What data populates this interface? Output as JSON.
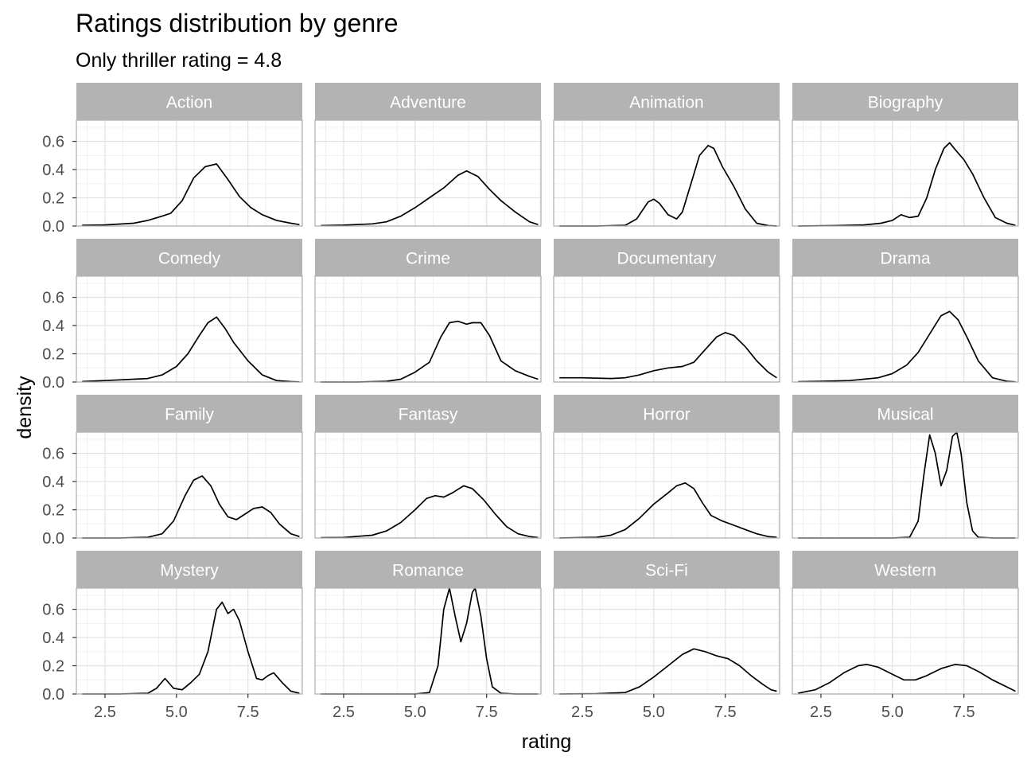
{
  "chart_data": {
    "type": "line",
    "title": "Ratings distribution by genre",
    "subtitle": "Only thriller rating = 4.8",
    "xlabel": "rating",
    "ylabel": "density",
    "xlim": [
      1.5,
      9.4
    ],
    "ylim": [
      0,
      0.75
    ],
    "x_ticks": [
      2.5,
      5.0,
      7.5
    ],
    "x_tick_labels": [
      "2.5",
      "5.0",
      "7.5"
    ],
    "y_ticks": [
      0.0,
      0.2,
      0.4,
      0.6
    ],
    "y_tick_labels": [
      "0.0",
      "0.2",
      "0.4",
      "0.6"
    ],
    "grid": true,
    "layout": "4x4 facet grid",
    "line_color": "#000000",
    "strip_color": "#b3b3b3",
    "panels": [
      {
        "name": "Action",
        "x": [
          1.7,
          2.5,
          3.5,
          4.0,
          4.5,
          4.8,
          5.2,
          5.6,
          6.0,
          6.4,
          6.8,
          7.2,
          7.6,
          8.0,
          8.5,
          9.0,
          9.3
        ],
        "y": [
          0.005,
          0.008,
          0.02,
          0.04,
          0.07,
          0.09,
          0.18,
          0.34,
          0.42,
          0.44,
          0.33,
          0.21,
          0.13,
          0.08,
          0.04,
          0.02,
          0.01
        ]
      },
      {
        "name": "Adventure",
        "x": [
          1.7,
          2.5,
          3.5,
          4.0,
          4.5,
          5.0,
          5.5,
          6.0,
          6.5,
          6.8,
          7.2,
          7.6,
          8.0,
          8.5,
          9.0,
          9.3
        ],
        "y": [
          0.003,
          0.006,
          0.015,
          0.03,
          0.07,
          0.13,
          0.2,
          0.27,
          0.36,
          0.39,
          0.35,
          0.26,
          0.18,
          0.1,
          0.03,
          0.01
        ]
      },
      {
        "name": "Animation",
        "x": [
          1.7,
          3.0,
          4.0,
          4.4,
          4.8,
          5.0,
          5.2,
          5.5,
          5.8,
          6.0,
          6.3,
          6.6,
          6.9,
          7.1,
          7.4,
          7.8,
          8.2,
          8.6,
          9.0,
          9.3
        ],
        "y": [
          0,
          0,
          0.005,
          0.05,
          0.17,
          0.19,
          0.16,
          0.08,
          0.05,
          0.1,
          0.3,
          0.5,
          0.57,
          0.55,
          0.42,
          0.28,
          0.12,
          0.02,
          0.003,
          0
        ]
      },
      {
        "name": "Biography",
        "x": [
          1.7,
          3.0,
          4.0,
          4.6,
          5.0,
          5.3,
          5.6,
          5.9,
          6.2,
          6.5,
          6.8,
          7.0,
          7.2,
          7.5,
          7.8,
          8.2,
          8.6,
          9.0,
          9.3
        ],
        "y": [
          0,
          0.003,
          0.008,
          0.02,
          0.04,
          0.08,
          0.06,
          0.07,
          0.2,
          0.4,
          0.55,
          0.59,
          0.54,
          0.47,
          0.37,
          0.2,
          0.06,
          0.02,
          0.005
        ]
      },
      {
        "name": "Comedy",
        "x": [
          1.7,
          2.5,
          3.5,
          4.0,
          4.5,
          5.0,
          5.4,
          5.8,
          6.1,
          6.4,
          6.7,
          7.0,
          7.5,
          8.0,
          8.5,
          9.0,
          9.3
        ],
        "y": [
          0.004,
          0.01,
          0.02,
          0.025,
          0.05,
          0.11,
          0.2,
          0.33,
          0.42,
          0.46,
          0.38,
          0.28,
          0.15,
          0.05,
          0.01,
          0.003,
          0.001
        ]
      },
      {
        "name": "Crime",
        "x": [
          1.7,
          3.0,
          4.0,
          4.5,
          5.0,
          5.5,
          5.9,
          6.2,
          6.5,
          6.8,
          7.0,
          7.3,
          7.6,
          8.0,
          8.5,
          9.0,
          9.3
        ],
        "y": [
          0,
          0,
          0.005,
          0.02,
          0.07,
          0.14,
          0.32,
          0.42,
          0.43,
          0.41,
          0.42,
          0.42,
          0.33,
          0.15,
          0.08,
          0.04,
          0.02
        ]
      },
      {
        "name": "Documentary",
        "x": [
          1.7,
          2.5,
          3.5,
          4.0,
          4.5,
          5.0,
          5.5,
          6.0,
          6.4,
          6.8,
          7.2,
          7.5,
          7.8,
          8.2,
          8.6,
          9.0,
          9.3
        ],
        "y": [
          0.03,
          0.03,
          0.025,
          0.03,
          0.05,
          0.08,
          0.1,
          0.11,
          0.14,
          0.23,
          0.32,
          0.35,
          0.33,
          0.25,
          0.15,
          0.07,
          0.03
        ]
      },
      {
        "name": "Drama",
        "x": [
          1.7,
          2.5,
          3.5,
          4.0,
          4.5,
          5.0,
          5.5,
          5.9,
          6.3,
          6.7,
          7.0,
          7.3,
          7.6,
          8.0,
          8.5,
          9.0,
          9.3
        ],
        "y": [
          0.002,
          0.005,
          0.01,
          0.02,
          0.03,
          0.06,
          0.12,
          0.21,
          0.34,
          0.47,
          0.5,
          0.44,
          0.32,
          0.15,
          0.03,
          0.005,
          0.001
        ]
      },
      {
        "name": "Family",
        "x": [
          1.7,
          3.0,
          4.0,
          4.5,
          4.9,
          5.3,
          5.6,
          5.9,
          6.2,
          6.5,
          6.8,
          7.1,
          7.4,
          7.7,
          8.0,
          8.3,
          8.6,
          9.0,
          9.3
        ],
        "y": [
          0,
          0,
          0.005,
          0.03,
          0.12,
          0.3,
          0.41,
          0.44,
          0.37,
          0.24,
          0.15,
          0.13,
          0.17,
          0.21,
          0.22,
          0.18,
          0.1,
          0.03,
          0.01
        ]
      },
      {
        "name": "Fantasy",
        "x": [
          1.7,
          2.5,
          3.5,
          4.0,
          4.5,
          5.0,
          5.4,
          5.7,
          6.0,
          6.3,
          6.7,
          7.0,
          7.4,
          7.8,
          8.2,
          8.6,
          9.0,
          9.3
        ],
        "y": [
          0.002,
          0.004,
          0.02,
          0.05,
          0.11,
          0.2,
          0.28,
          0.3,
          0.29,
          0.32,
          0.37,
          0.35,
          0.27,
          0.17,
          0.08,
          0.03,
          0.01,
          0.003
        ]
      },
      {
        "name": "Horror",
        "x": [
          1.7,
          3.0,
          3.5,
          4.0,
          4.5,
          5.0,
          5.5,
          5.8,
          6.1,
          6.4,
          6.7,
          7.0,
          7.4,
          7.8,
          8.2,
          8.6,
          9.0,
          9.3
        ],
        "y": [
          0,
          0.005,
          0.02,
          0.06,
          0.14,
          0.24,
          0.32,
          0.37,
          0.39,
          0.35,
          0.25,
          0.16,
          0.12,
          0.09,
          0.06,
          0.03,
          0.01,
          0.005
        ]
      },
      {
        "name": "Musical",
        "x": [
          1.7,
          4.0,
          5.0,
          5.6,
          5.9,
          6.1,
          6.3,
          6.5,
          6.7,
          6.9,
          7.1,
          7.25,
          7.4,
          7.6,
          7.8,
          8.0,
          8.5,
          9.3
        ],
        "y": [
          0,
          0,
          0,
          0.005,
          0.12,
          0.45,
          0.73,
          0.6,
          0.37,
          0.48,
          0.72,
          0.75,
          0.6,
          0.25,
          0.05,
          0.005,
          0,
          0
        ]
      },
      {
        "name": "Mystery",
        "x": [
          1.7,
          3.0,
          4.0,
          4.3,
          4.6,
          4.9,
          5.2,
          5.5,
          5.8,
          6.1,
          6.4,
          6.6,
          6.8,
          7.0,
          7.2,
          7.5,
          7.8,
          8.0,
          8.2,
          8.4,
          8.7,
          9.0,
          9.3
        ],
        "y": [
          0,
          0,
          0.005,
          0.04,
          0.11,
          0.04,
          0.03,
          0.08,
          0.14,
          0.3,
          0.6,
          0.65,
          0.57,
          0.6,
          0.52,
          0.3,
          0.11,
          0.1,
          0.13,
          0.15,
          0.08,
          0.02,
          0.005
        ]
      },
      {
        "name": "Romance",
        "x": [
          1.7,
          4.0,
          5.0,
          5.5,
          5.8,
          6.0,
          6.2,
          6.4,
          6.6,
          6.8,
          7.0,
          7.1,
          7.3,
          7.5,
          7.7,
          8.0,
          8.5,
          9.3
        ],
        "y": [
          0,
          0,
          0,
          0.01,
          0.2,
          0.6,
          0.75,
          0.55,
          0.37,
          0.5,
          0.72,
          0.75,
          0.55,
          0.25,
          0.05,
          0.005,
          0,
          0
        ]
      },
      {
        "name": "Sci-Fi",
        "x": [
          1.7,
          3.0,
          4.0,
          4.5,
          5.0,
          5.5,
          6.0,
          6.4,
          6.8,
          7.2,
          7.6,
          8.0,
          8.4,
          8.8,
          9.1,
          9.3
        ],
        "y": [
          0,
          0.002,
          0.01,
          0.05,
          0.12,
          0.2,
          0.28,
          0.32,
          0.3,
          0.27,
          0.25,
          0.2,
          0.13,
          0.07,
          0.03,
          0.02
        ]
      },
      {
        "name": "Western",
        "x": [
          1.7,
          2.3,
          2.8,
          3.3,
          3.8,
          4.1,
          4.5,
          5.0,
          5.4,
          5.8,
          6.2,
          6.7,
          7.2,
          7.6,
          8.0,
          8.5,
          9.0,
          9.3
        ],
        "y": [
          0.005,
          0.03,
          0.08,
          0.15,
          0.2,
          0.21,
          0.19,
          0.14,
          0.1,
          0.1,
          0.13,
          0.18,
          0.21,
          0.2,
          0.16,
          0.1,
          0.05,
          0.02
        ]
      }
    ]
  }
}
